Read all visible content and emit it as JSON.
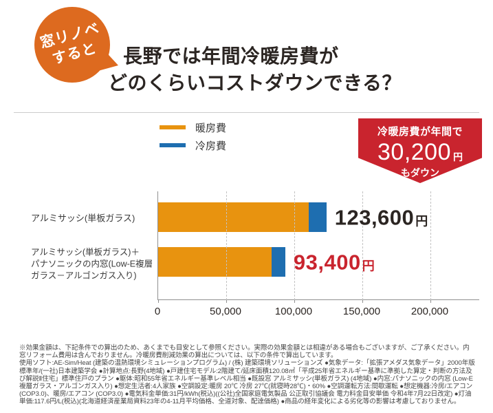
{
  "badge": {
    "line1": "窓リノベ",
    "line2": "すると",
    "color": "#dd6a1f"
  },
  "title": {
    "line1": "長野では年間冷暖房費が",
    "line2": "どのくらいコストダウンできる？"
  },
  "legend": [
    {
      "label": "暖房費",
      "color": "#e8930f"
    },
    {
      "label": "冷房費",
      "color": "#1e6eb0"
    }
  ],
  "callout": {
    "line1": "冷暖房費が年間で",
    "amount": "30,200",
    "unit": "円",
    "line3": "もダウン",
    "color": "#c9242e"
  },
  "chart_data": {
    "type": "bar",
    "orientation": "horizontal",
    "stacked": true,
    "title": "長野では年間冷暖房費がどのくらいコストダウンできる？",
    "categories": [
      "アルミサッシ(単板ガラス)",
      "アルミサッシ(単板ガラス)＋パナソニックの内窓(Low-E複層ガラス－アルゴンガス入り)"
    ],
    "series": [
      {
        "name": "暖房費",
        "color": "#e8930f",
        "values": [
          110600,
          83400
        ]
      },
      {
        "name": "冷房費",
        "color": "#1e6eb0",
        "values": [
          13000,
          10000
        ]
      }
    ],
    "totals": [
      123600,
      93400
    ],
    "total_labels": [
      "123,600",
      "93,400"
    ],
    "unit": "円",
    "xlim": [
      0,
      200000
    ],
    "xticks": [
      "0",
      "50,000",
      "100,000",
      "150,000",
      "200,000"
    ],
    "xtick_values": [
      0,
      50000,
      100000,
      150000,
      200000
    ],
    "grid": "vertical-dashed",
    "legend_position": "top-center",
    "annotation": "冷暖房費が年間で30,200円もダウン"
  },
  "rows": [
    {
      "label": "アルミサッシ(単板ガラス)"
    },
    {
      "label": "アルミサッシ(単板ガラス)＋\nパナソニックの内窓(Low-E複層\nガラス－アルゴンガス入り)"
    }
  ],
  "notes": {
    "p1": "※効果金額は、下記条件での算出のため、あくまでも目安として参照ください。実際の効果金額とは相違がある場合もございますが、ご了承ください。内窓リフォーム費用は含んでおりません。冷暖房費削減効果の算出については、以下の条件で算出しています。",
    "p2": "使用ソフト:AE-Sim/Heat (建築の温熱環境シミュレーションプログラム) / (株) 建築環境ソリューションズ ●気象データ:「拡張アメダス気象データ」2000年版標準年/(一社)日本建築学会 ●計算地点:長野(4地域) ●戸建住宅モデル:2階建て/延床面積120.08㎡「平成25年省エネルギー基準に準拠した算定・判断の方法及び解説Ⅱ住宅」標準住戸のプラン ●躯体:昭和55年省エネルギー基準レベル相当 ●既設窓 アルミサッシ(単板ガラス) (4地域) ●内窓:パナソニックの内窓 (Low-E複層ガラス・アルゴンガス入り) ●想定生活者:4人家族 ●空調設定:暖房 20℃ 冷房 27℃(就寝時28℃)・60% ●空調運転方法:間歇運転 ●想定機器:冷房/エアコン(COP3.0)、暖房/エアコン (COP3.0) ●電気料金単価:31円/kWh(税込)((公社)全国家庭電気製品 公正取引協議会 電力料金目安単価 令和4年7月22日改定) ●灯油単価:117.6円/L(税込)(北海道経済産業局資料23年の4-11月平均価格、全道対象、配達価格) ●商品の経年変化による劣化等の影響は考慮しておりません。"
  }
}
